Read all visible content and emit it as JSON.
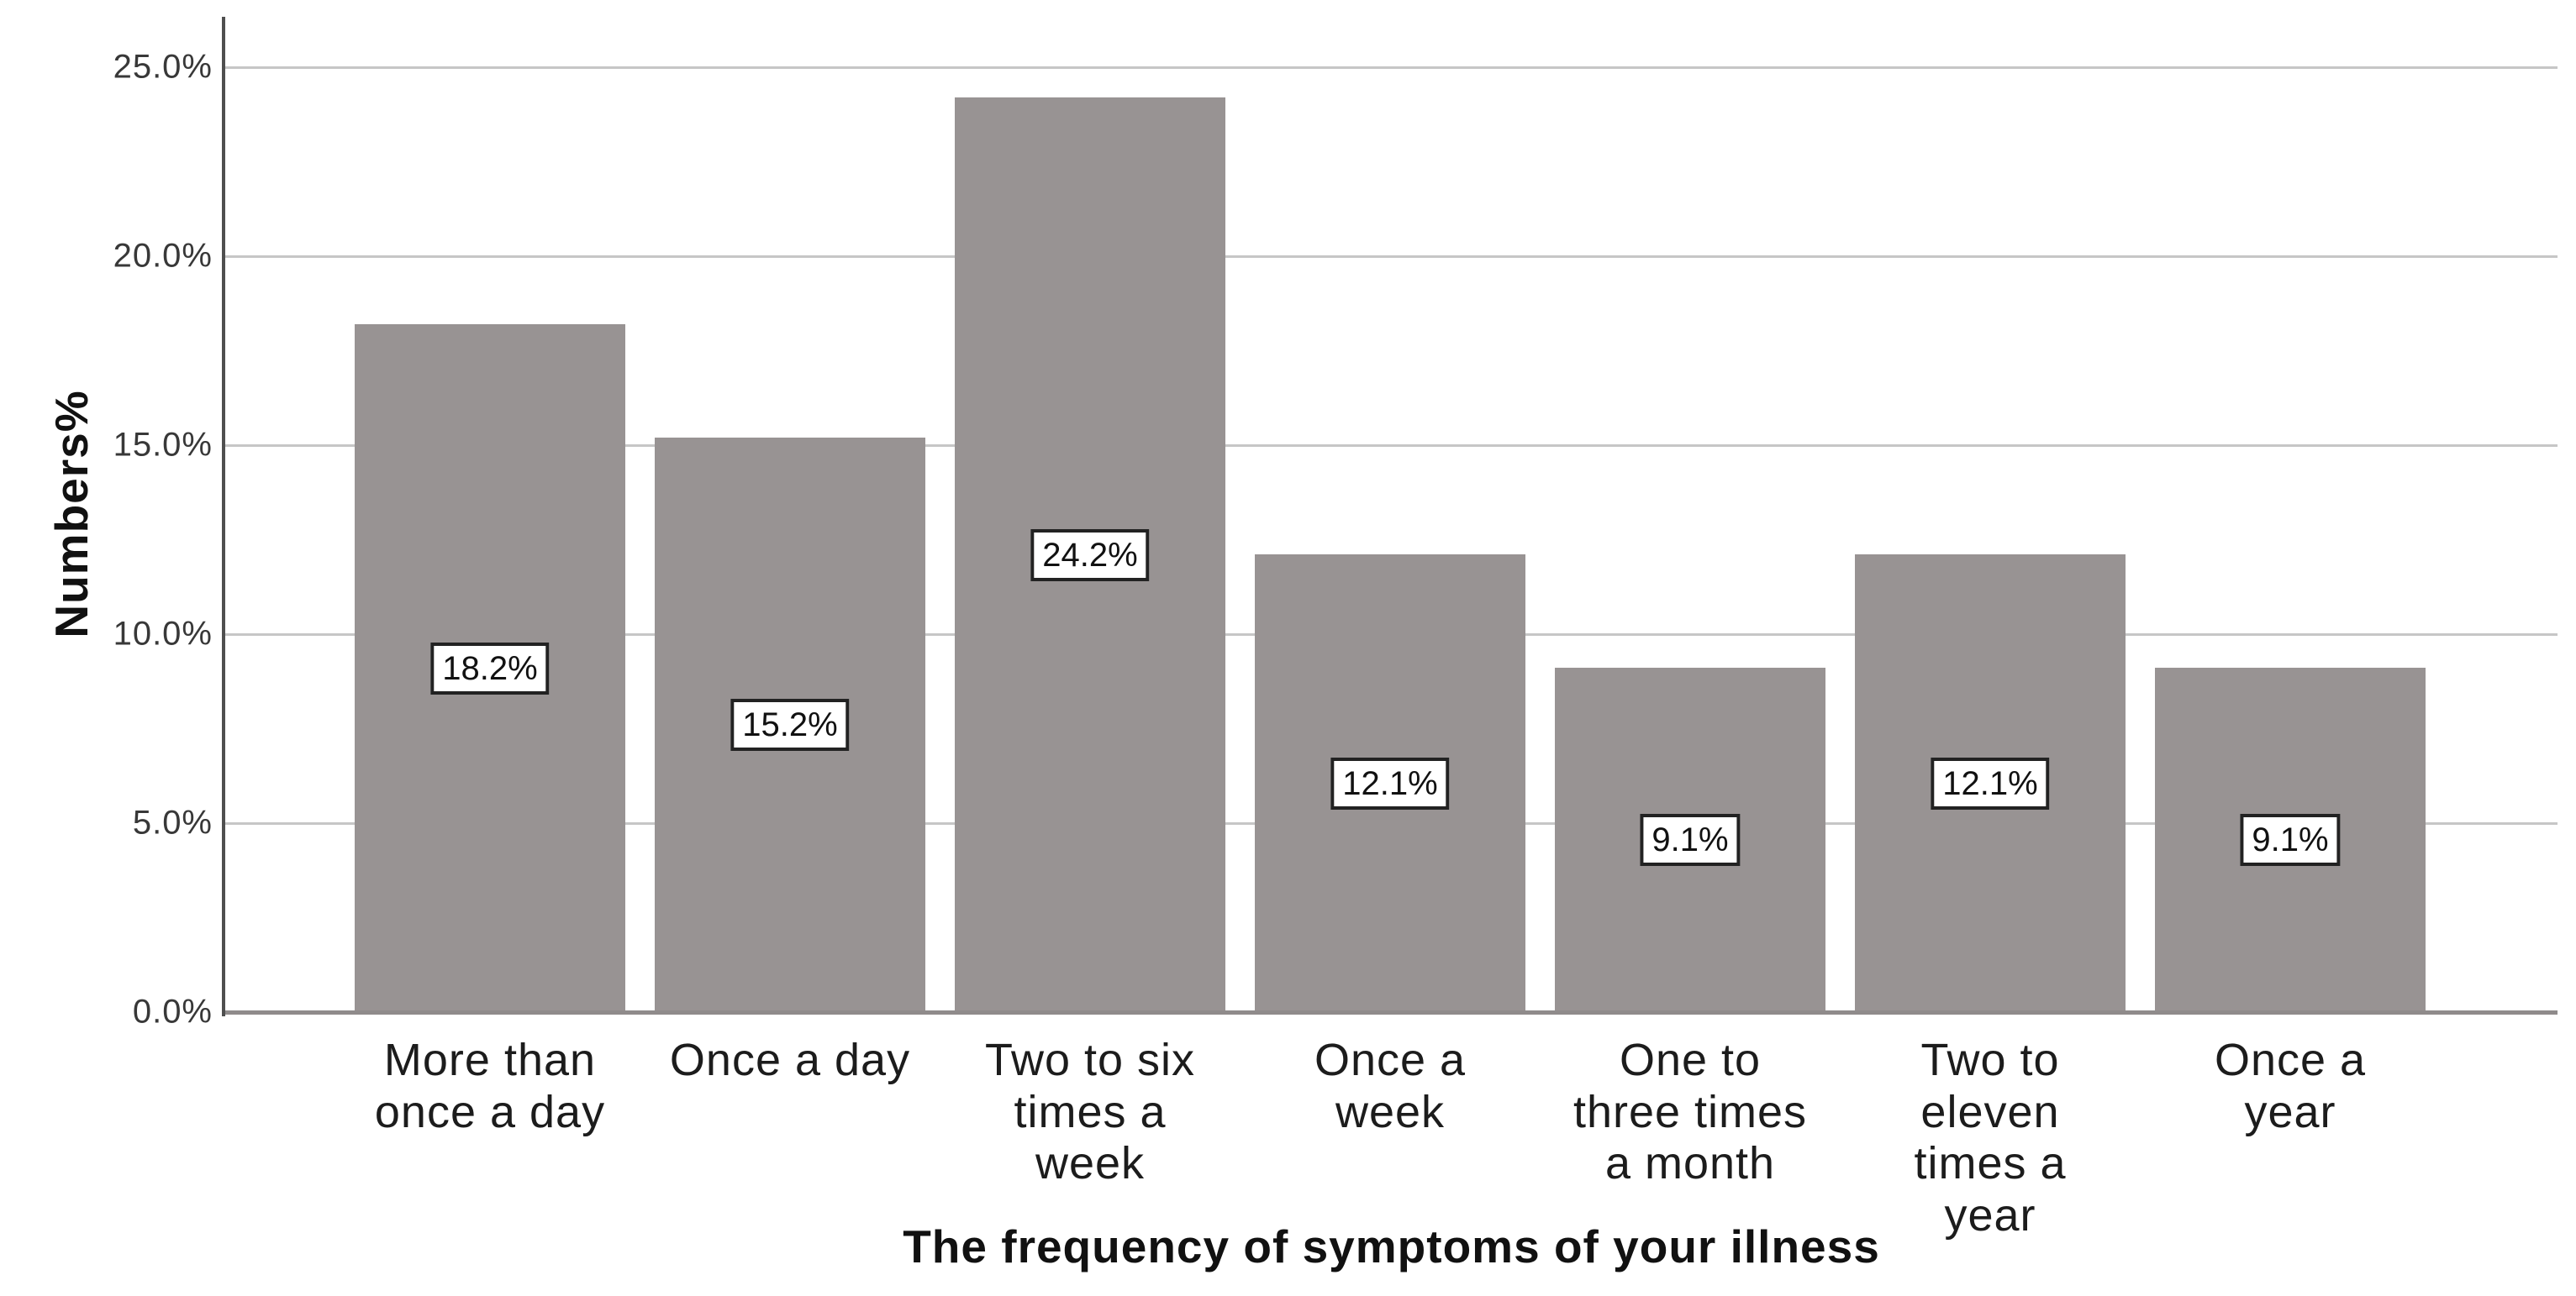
{
  "chart_data": {
    "type": "bar",
    "title": "",
    "xlabel": "The frequency of symptoms of your illness",
    "ylabel": "Numbers%",
    "categories": [
      "More than\nonce a day",
      "Once a day",
      "Two to six\ntimes a\nweek",
      "Once a\nweek",
      "One to\nthree times\na month",
      "Two to\neleven\ntimes a\nyear",
      "Once a\nyear"
    ],
    "values": [
      18.2,
      15.2,
      24.2,
      12.1,
      9.1,
      12.1,
      9.1
    ],
    "bar_labels": [
      "18.2%",
      "15.2%",
      "24.2%",
      "12.1%",
      "9.1%",
      "12.1%",
      "9.1%"
    ],
    "y_tick_values": [
      0,
      5,
      10,
      15,
      20,
      25
    ],
    "y_tick_labels": [
      "0.0%",
      "5.0%",
      "10.0%",
      "15.0%",
      "20.0%",
      "25.0%"
    ],
    "ylim": [
      0,
      26.3
    ],
    "grid": "horizontal",
    "legend": "none",
    "bar_color": "#989393",
    "gridline_color": "#c6c6c6",
    "axis_line_color": "#4f4f4f"
  }
}
